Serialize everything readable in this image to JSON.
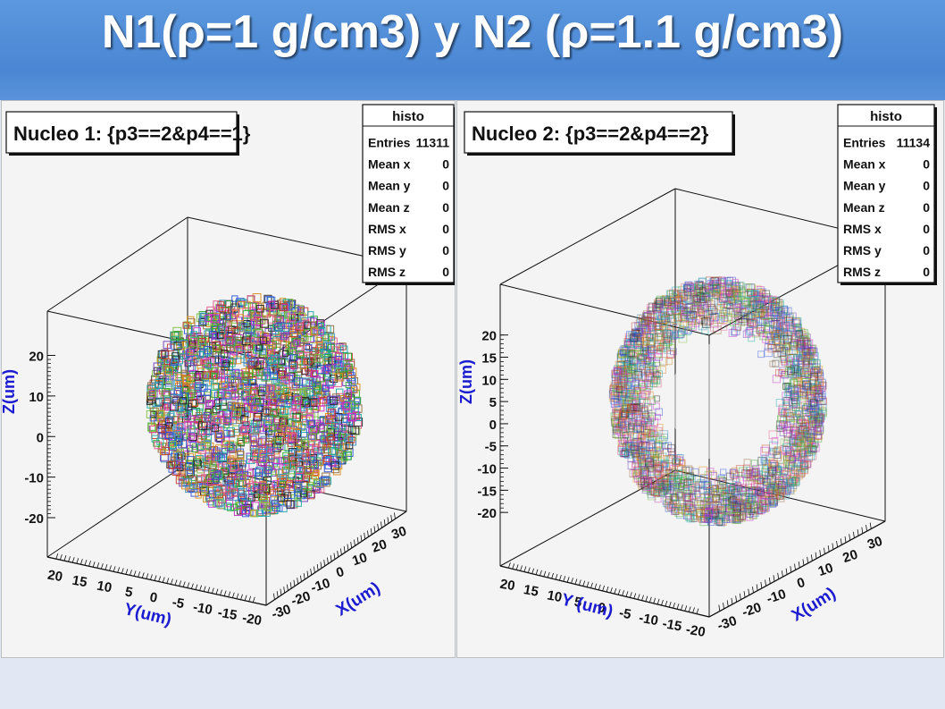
{
  "slide": {
    "title": "N1(ρ=1 g/cm3) y N2 (ρ=1.1 g/cm3)"
  },
  "colors": {
    "header": "#4a86d3",
    "axis_title": "#1b1bd0",
    "panel_bg": "#f4f4f4"
  },
  "chart_data": [
    {
      "type": "scatter",
      "title": "Nucleo 1: {p3==2&p4==1}",
      "xlabel": "X(um)",
      "ylabel": "Y(um)",
      "zlabel": "Z(um)",
      "x_ticks": [
        "-30",
        "-20",
        "-10",
        "0",
        "10",
        "20",
        "30"
      ],
      "y_ticks": [
        "20",
        "15",
        "10",
        "5",
        "0",
        "-5",
        "-10",
        "-15",
        "-20"
      ],
      "z_ticks": [
        "20",
        "10",
        "0",
        "-10",
        "-20"
      ],
      "stats": {
        "name": "histo",
        "rows": [
          {
            "label": "Entries",
            "value": "11311"
          },
          {
            "label": "Mean x",
            "value": "0"
          },
          {
            "label": "Mean y",
            "value": "0"
          },
          {
            "label": "Mean z",
            "value": "0"
          },
          {
            "label": "RMS x",
            "value": "0"
          },
          {
            "label": "RMS y",
            "value": "0"
          },
          {
            "label": "RMS z",
            "value": "0"
          }
        ]
      },
      "cloud": {
        "shape": "solid sphere",
        "radius": 19,
        "saturation": "high"
      }
    },
    {
      "type": "scatter",
      "title": "Nucleo 2: {p3==2&p4==2}",
      "xlabel": "X(um)",
      "ylabel": "Y (um)",
      "zlabel": "Z(um)",
      "x_ticks": [
        "-30",
        "-20",
        "-10",
        "0",
        "10",
        "20",
        "30"
      ],
      "y_ticks": [
        "20",
        "15",
        "10",
        "5",
        "0",
        "-5",
        "-10",
        "-15",
        "-20"
      ],
      "z_ticks": [
        "20",
        "15",
        "10",
        "5",
        "0",
        "-5",
        "-10",
        "-15",
        "-20"
      ],
      "stats": {
        "name": "histo",
        "rows": [
          {
            "label": "Entries",
            "value": "11134"
          },
          {
            "label": "Mean x",
            "value": "0"
          },
          {
            "label": "Mean y",
            "value": "0"
          },
          {
            "label": "Mean z",
            "value": "0"
          },
          {
            "label": "RMS x",
            "value": "0"
          },
          {
            "label": "RMS y",
            "value": "0"
          },
          {
            "label": "RMS z",
            "value": "0"
          }
        ]
      },
      "cloud": {
        "shape": "hollow shell",
        "radius": 21,
        "saturation": "pale"
      }
    }
  ]
}
